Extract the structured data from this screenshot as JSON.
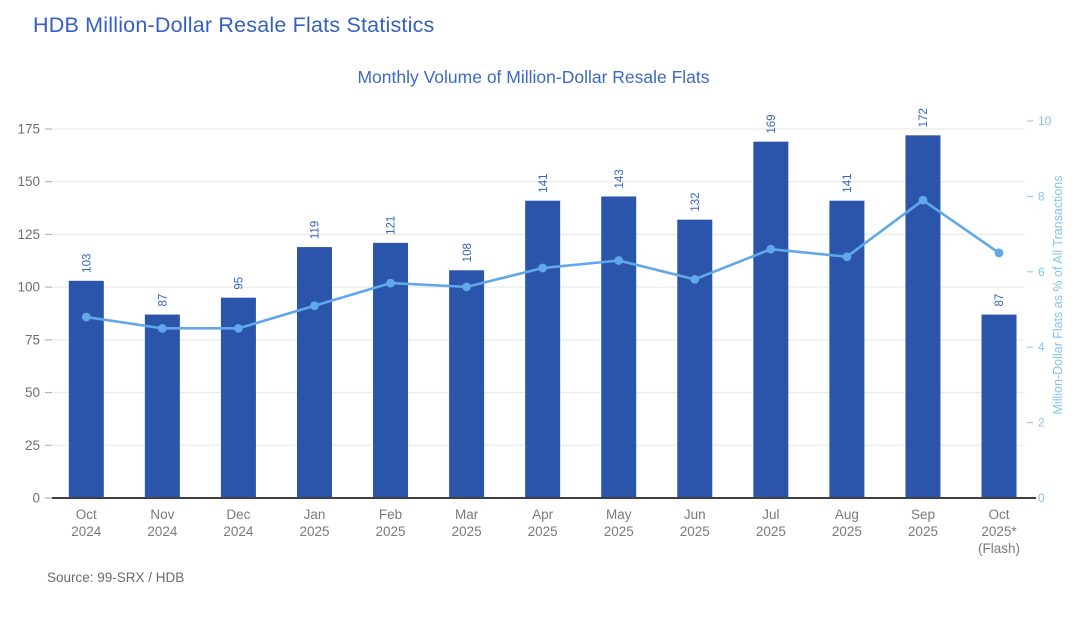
{
  "page": {
    "title": "HDB Million-Dollar Resale Flats Statistics",
    "source": "Source: 99-SRX / HDB"
  },
  "chart_data": {
    "type": "combo-bar-line",
    "title": "Monthly Volume of Million-Dollar Resale Flats",
    "categories": [
      [
        "Oct",
        "2024"
      ],
      [
        "Nov",
        "2024"
      ],
      [
        "Dec",
        "2024"
      ],
      [
        "Jan",
        "2025"
      ],
      [
        "Feb",
        "2025"
      ],
      [
        "Mar",
        "2025"
      ],
      [
        "Apr",
        "2025"
      ],
      [
        "May",
        "2025"
      ],
      [
        "Jun",
        "2025"
      ],
      [
        "Jul",
        "2025"
      ],
      [
        "Aug",
        "2025"
      ],
      [
        "Sep",
        "2025"
      ],
      [
        "Oct",
        "2025*",
        "(Flash)"
      ]
    ],
    "series": [
      {
        "name": "Monthly volume of million-dollar resale flats",
        "type": "bar",
        "axis": "left",
        "values": [
          103,
          87,
          95,
          119,
          121,
          108,
          141,
          143,
          132,
          169,
          141,
          172,
          87
        ],
        "data_labels": true
      },
      {
        "name": "Million-Dollar Flats as % of All Transactions",
        "type": "line",
        "axis": "right",
        "values": [
          4.8,
          4.5,
          4.5,
          5.1,
          5.7,
          5.6,
          6.1,
          6.3,
          5.8,
          6.6,
          6.4,
          7.9,
          6.5
        ],
        "markers": true
      }
    ],
    "left_axis": {
      "ticks": [
        0,
        25,
        50,
        75,
        100,
        125,
        150,
        175
      ],
      "range": [
        0,
        175
      ]
    },
    "right_axis": {
      "ticks": [
        0,
        2,
        4,
        6,
        8,
        10
      ],
      "range": [
        0,
        10
      ],
      "title": "Million-Dollar Flats as % of All Transactions"
    },
    "grid": "horizontal",
    "legend": "none"
  },
  "colors": {
    "bar": "#2b54ab",
    "bar_label": "#3a63c0",
    "line": "#60a8e9",
    "right_axis": "#86c2f0",
    "right_tick_dash": "#a8c9e9",
    "main_title": "#3560c2",
    "chart_title": "#3e68c6",
    "left_axis": "#6f6f6f",
    "x_labels": "#7a7a7a",
    "source": "#6b6b6b",
    "grid": "#ebebeb",
    "axis_line": "#404040"
  }
}
